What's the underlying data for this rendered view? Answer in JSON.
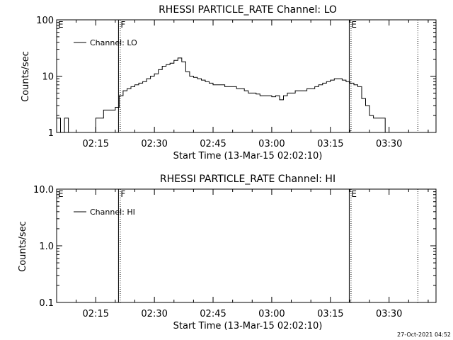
{
  "chart_data": [
    {
      "type": "line",
      "title": "RHESSI PARTICLE_RATE Channel: LO",
      "xlabel": "Start Time (13-Mar-15 02:02:10)",
      "ylabel": "Counts/sec",
      "yscale": "log",
      "ylim": [
        1,
        100
      ],
      "xlim": [
        "02:05",
        "03:42"
      ],
      "y_tick_labels": [
        "1",
        "10",
        "100"
      ],
      "x_tick_labels": [
        "02:15",
        "02:30",
        "02:45",
        "03:00",
        "03:15",
        "03:30"
      ],
      "legend": {
        "position": "top-left",
        "entries": [
          "Channel: LO"
        ]
      },
      "grid": false,
      "markers": [
        {
          "label": "E",
          "time": "02:05"
        },
        {
          "label": "F",
          "time": "02:21"
        },
        {
          "label": "E",
          "time": "03:20"
        }
      ],
      "series": [
        {
          "name": "Channel: LO",
          "x": [
            "02:05",
            "02:06",
            "02:07",
            "02:08",
            "02:09",
            "02:10",
            "02:11",
            "02:12",
            "02:13",
            "02:14",
            "02:15",
            "02:16",
            "02:17",
            "02:18",
            "02:19",
            "02:20",
            "02:21",
            "02:22",
            "02:23",
            "02:24",
            "02:25",
            "02:26",
            "02:27",
            "02:28",
            "02:29",
            "02:30",
            "02:31",
            "02:32",
            "02:33",
            "02:34",
            "02:35",
            "02:36",
            "02:37",
            "02:38",
            "02:39",
            "02:40",
            "02:41",
            "02:42",
            "02:43",
            "02:44",
            "02:45",
            "02:46",
            "02:47",
            "02:48",
            "02:49",
            "02:50",
            "02:51",
            "02:52",
            "02:53",
            "02:54",
            "02:55",
            "02:56",
            "02:57",
            "02:58",
            "02:59",
            "03:00",
            "03:01",
            "03:02",
            "03:03",
            "03:04",
            "03:05",
            "03:06",
            "03:07",
            "03:08",
            "03:09",
            "03:10",
            "03:11",
            "03:12",
            "03:13",
            "03:14",
            "03:15",
            "03:16",
            "03:17",
            "03:18",
            "03:19",
            "03:20",
            "03:21",
            "03:22",
            "03:23",
            "03:24",
            "03:25",
            "03:26",
            "03:27",
            "03:28",
            "03:29",
            "03:30",
            "03:31",
            "03:32",
            "03:33",
            "03:34",
            "03:35",
            "03:36",
            "03:37"
          ],
          "values": [
            1.8,
            1.0,
            1.8,
            1.0,
            1.0,
            1.0,
            1.0,
            1.0,
            1.0,
            1.0,
            1.8,
            1.8,
            2.5,
            2.5,
            2.5,
            2.8,
            4.5,
            5.5,
            6,
            6.5,
            7,
            7.5,
            8,
            9,
            10,
            11,
            13,
            15,
            16,
            17,
            19,
            21,
            18,
            12,
            10,
            9.5,
            9,
            8.5,
            8,
            7.5,
            7,
            7,
            7,
            6.5,
            6.5,
            6.5,
            6,
            6,
            5.5,
            5,
            5,
            4.8,
            4.5,
            4.5,
            4.5,
            4.3,
            4.5,
            3.8,
            4.5,
            5,
            5,
            5.5,
            5.5,
            5.5,
            6,
            6,
            6.5,
            7,
            7.5,
            8,
            8.5,
            9,
            9,
            8.5,
            8,
            7.5,
            7,
            6.5,
            4,
            3,
            2,
            1.8,
            1.8,
            1.8,
            1.0,
            1.0,
            1.0,
            1.0,
            1.0,
            1.0,
            1.0,
            1.0,
            1.0
          ]
        }
      ]
    },
    {
      "type": "line",
      "title": "RHESSI PARTICLE_RATE Channel: HI",
      "xlabel": "Start Time (13-Mar-15 02:02:10)",
      "ylabel": "Counts/sec",
      "yscale": "log",
      "ylim": [
        0.1,
        10
      ],
      "xlim": [
        "02:05",
        "03:42"
      ],
      "y_tick_labels": [
        "0.1",
        "1.0",
        "10.0"
      ],
      "x_tick_labels": [
        "02:15",
        "02:30",
        "02:45",
        "03:00",
        "03:15",
        "03:30"
      ],
      "legend": {
        "position": "top-left",
        "entries": [
          "Channel: HI"
        ]
      },
      "grid": false,
      "markers": [
        {
          "label": "E",
          "time": "02:05"
        },
        {
          "label": "F",
          "time": "02:21"
        },
        {
          "label": "E",
          "time": "03:20"
        }
      ],
      "series": [
        {
          "name": "Channel: HI",
          "x": [],
          "values": []
        }
      ]
    }
  ],
  "footer": {
    "timestamp": "27-Oct-2021 04:52"
  },
  "colors": {
    "line": "#000000",
    "background": "#ffffff"
  }
}
